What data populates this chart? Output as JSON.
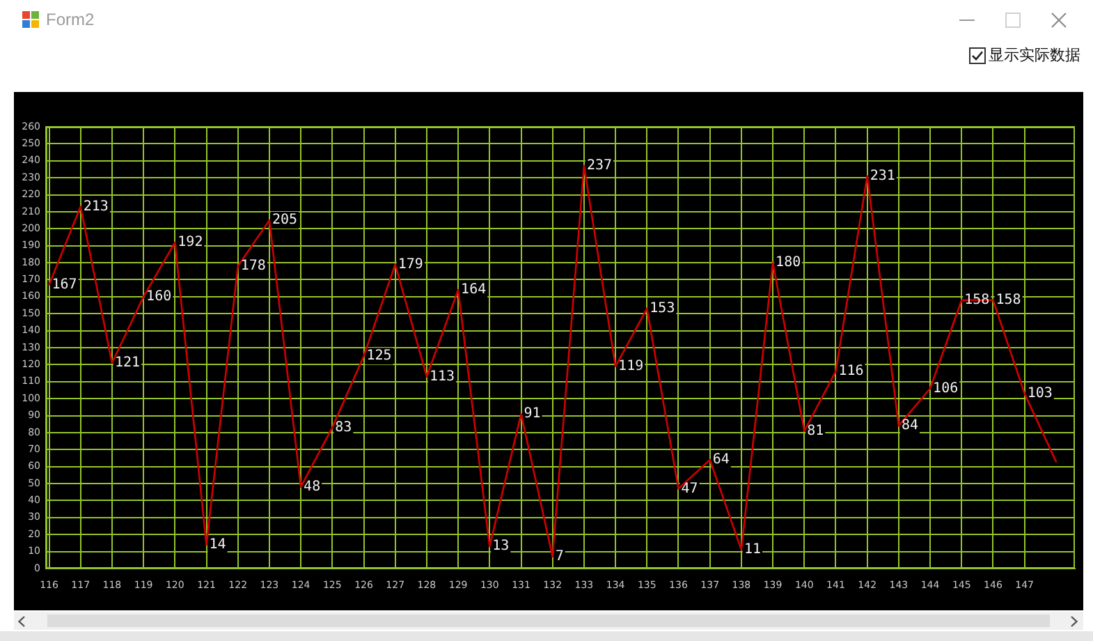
{
  "chart_data": {
    "type": "line",
    "title": "Form2",
    "annotations": [
      "显示实际数据"
    ],
    "x": [
      116,
      117,
      118,
      119,
      120,
      121,
      122,
      123,
      124,
      125,
      126,
      127,
      128,
      129,
      130,
      131,
      132,
      133,
      134,
      135,
      136,
      137,
      138,
      139,
      140,
      141,
      142,
      143,
      144,
      145,
      146,
      147,
      148
    ],
    "values": [
      167,
      213,
      121,
      160,
      192,
      14,
      178,
      205,
      48,
      83,
      125,
      179,
      113,
      164,
      13,
      91,
      7,
      237,
      119,
      153,
      47,
      64,
      11,
      180,
      81,
      116,
      231,
      84,
      106,
      158,
      158,
      103,
      63
    ],
    "value_labels": [
      "167",
      "213",
      "121",
      "160",
      "192",
      "14",
      "178",
      "205",
      "48",
      "83",
      "125",
      "179",
      "113",
      "164",
      "13",
      "91",
      "7",
      "237",
      "119",
      "153",
      "47",
      "64",
      "11",
      "180",
      "81",
      "116",
      "231",
      "84",
      "106",
      "158",
      "158",
      "103",
      null
    ],
    "color": "#d00000",
    "xlim": [
      115.9,
      148.6
    ],
    "xticks": [
      116,
      117,
      118,
      119,
      120,
      121,
      122,
      123,
      124,
      125,
      126,
      127,
      128,
      129,
      130,
      131,
      132,
      133,
      134,
      135,
      136,
      137,
      138,
      139,
      140,
      141,
      142,
      143,
      144,
      145,
      146,
      147
    ],
    "ylim": [
      0,
      260
    ],
    "yticks": [
      0,
      10,
      20,
      30,
      40,
      50,
      60,
      70,
      80,
      90,
      100,
      110,
      120,
      130,
      140,
      150,
      160,
      170,
      180,
      190,
      200,
      210,
      220,
      230,
      240,
      250,
      260
    ],
    "grid": true
  }
}
